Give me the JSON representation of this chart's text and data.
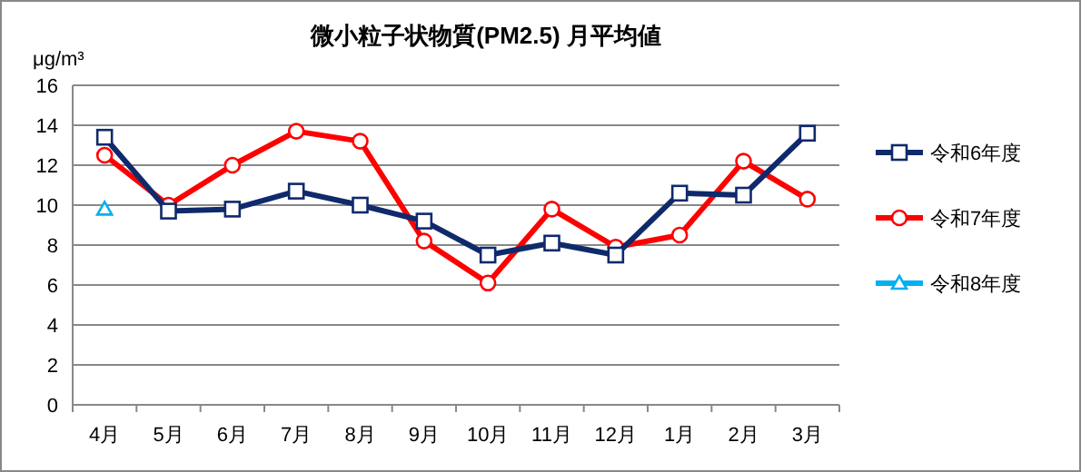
{
  "chart_data": {
    "type": "line",
    "title": "微小粒子状物質(PM2.5)  月平均値",
    "ylabel": "μg/m³",
    "categories": [
      "4月",
      "5月",
      "6月",
      "7月",
      "8月",
      "9月",
      "10月",
      "11月",
      "12月",
      "1月",
      "2月",
      "3月"
    ],
    "series": [
      {
        "name": "令和6年度",
        "color": "#0f2a6b",
        "marker": "square",
        "values": [
          13.4,
          9.7,
          9.8,
          10.7,
          10.0,
          9.2,
          7.5,
          8.1,
          7.5,
          10.6,
          10.5,
          13.6
        ]
      },
      {
        "name": "令和7年度",
        "color": "#ff0000",
        "marker": "circle",
        "values": [
          12.5,
          10.0,
          12.0,
          13.7,
          13.2,
          8.2,
          6.1,
          9.8,
          7.9,
          8.5,
          12.2,
          10.3
        ]
      },
      {
        "name": "令和8年度",
        "color": "#00b0f0",
        "marker": "triangle",
        "values": [
          9.8,
          null,
          null,
          null,
          null,
          null,
          null,
          null,
          null,
          null,
          null,
          null
        ]
      }
    ],
    "ylim": [
      0,
      16
    ],
    "yticks": [
      0,
      2,
      4,
      6,
      8,
      10,
      12,
      14,
      16
    ],
    "grid": "y",
    "legend": "right",
    "line_style": "solid"
  }
}
